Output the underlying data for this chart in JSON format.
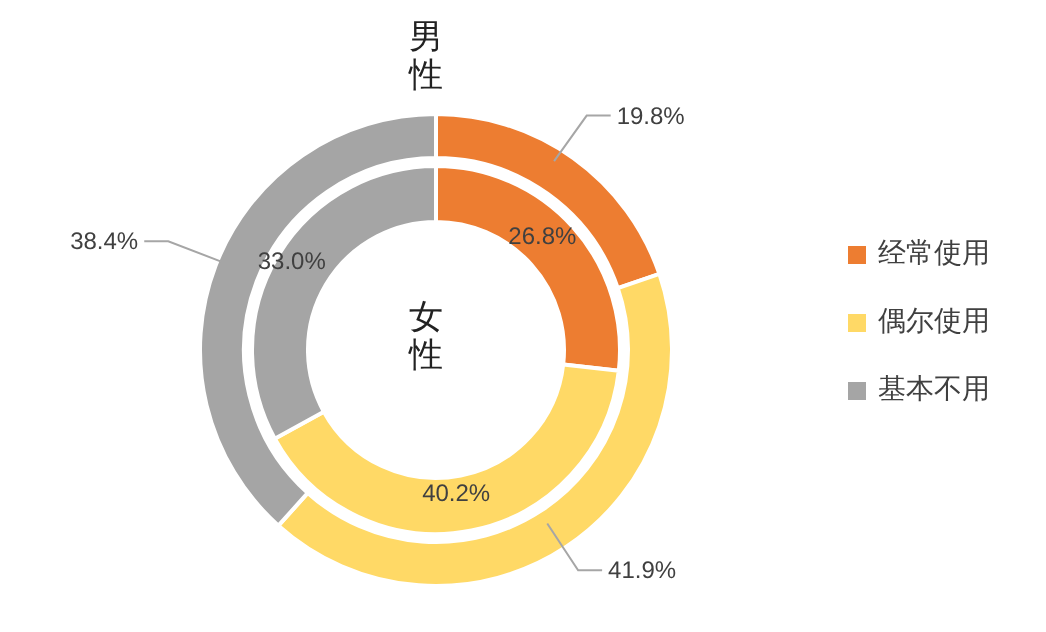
{
  "chart_data": {
    "type": "donut",
    "categories": [
      "经常使用",
      "偶尔使用",
      "基本不用"
    ],
    "colors": [
      "#ed7d31",
      "#ffd966",
      "#a5a5a5"
    ],
    "series": [
      {
        "name": "男性",
        "values": [
          19.8,
          41.9,
          38.4
        ],
        "value_labels": [
          "19.8%",
          "41.9%",
          "38.4%"
        ]
      },
      {
        "name": "女性",
        "values": [
          26.8,
          40.2,
          33.0
        ],
        "value_labels": [
          "26.8%",
          "40.2%",
          "33.0%"
        ]
      }
    ],
    "legend": "right"
  }
}
